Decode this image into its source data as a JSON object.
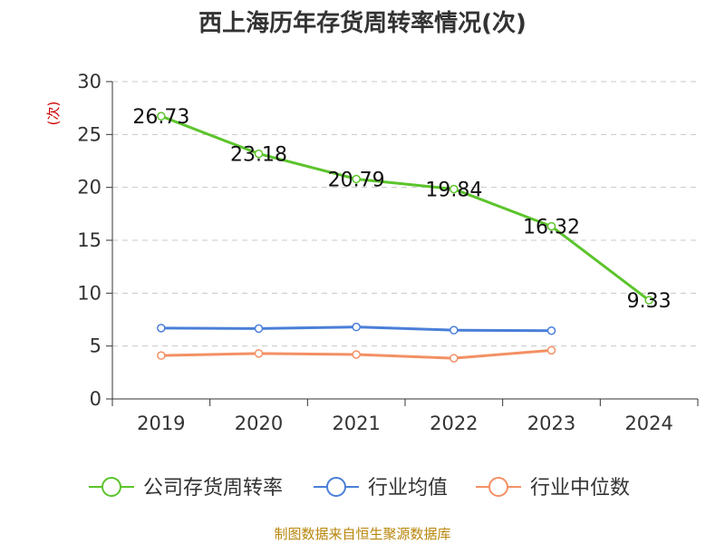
{
  "chart_data": {
    "type": "line",
    "title": "西上海历年存货周转率情况(次)",
    "ylabel": "(次)",
    "xlabel": "",
    "categories": [
      "2019",
      "2020",
      "2021",
      "2022",
      "2023",
      "2024"
    ],
    "ylim": [
      0,
      30
    ],
    "yticks": [
      0,
      5,
      10,
      15,
      20,
      25,
      30
    ],
    "grid": true,
    "legend_position": "bottom",
    "series": [
      {
        "name": "公司存货周转率",
        "color": "#5cc42c",
        "values": [
          26.73,
          23.18,
          20.79,
          19.84,
          16.32,
          9.33
        ],
        "labels": [
          "26.73",
          "23.18",
          "20.79",
          "19.84",
          "16.32",
          "9.33"
        ]
      },
      {
        "name": "行业均值",
        "color": "#4a7fd8",
        "values": [
          6.7,
          6.65,
          6.8,
          6.5,
          6.45,
          null
        ]
      },
      {
        "name": "行业中位数",
        "color": "#f39064",
        "values": [
          4.1,
          4.3,
          4.2,
          3.85,
          4.6,
          null
        ]
      }
    ],
    "source": "制图数据来自恒生聚源数据库"
  }
}
